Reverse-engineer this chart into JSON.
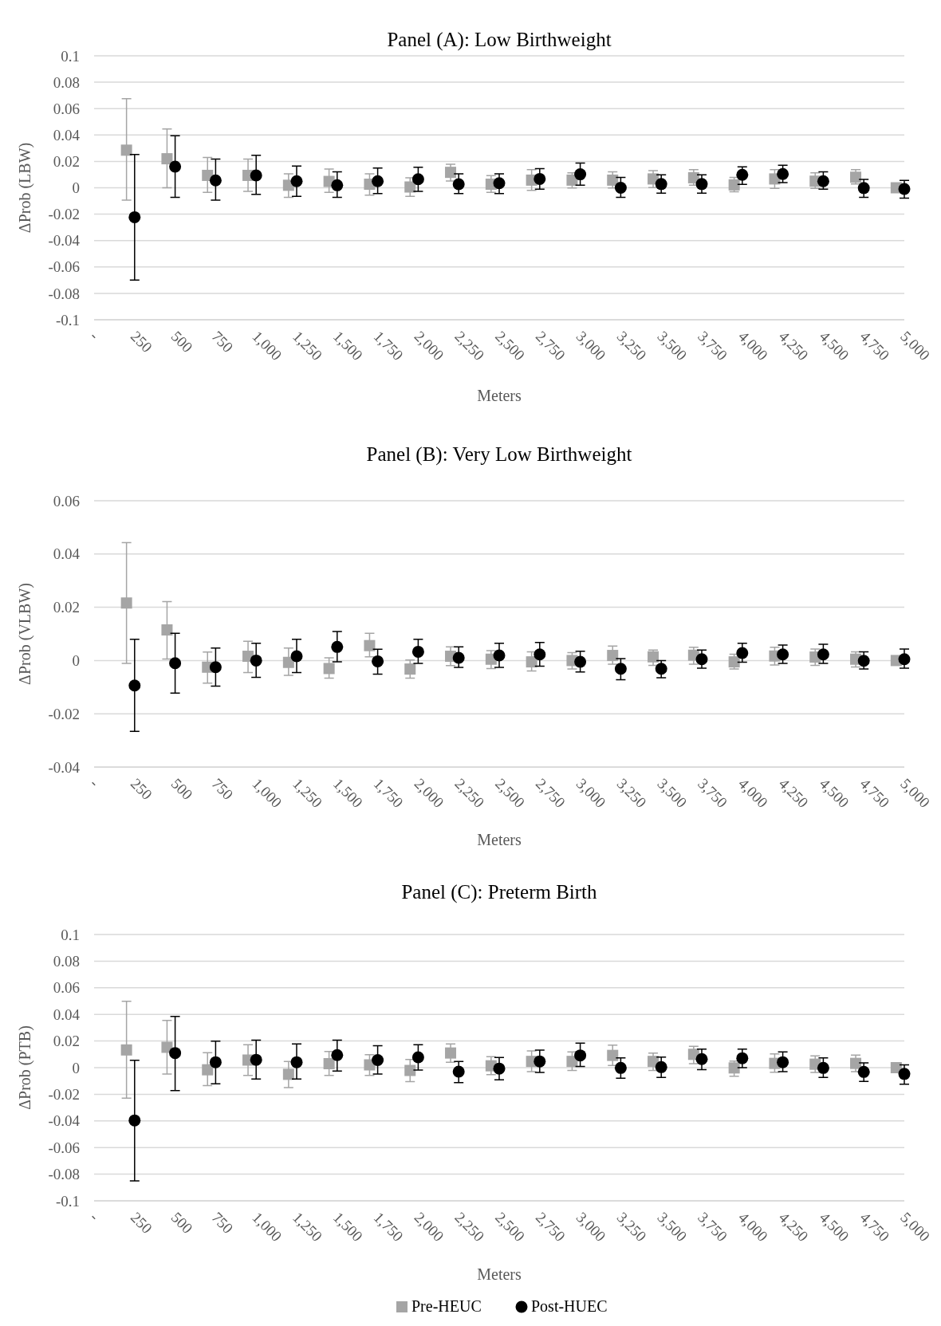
{
  "chart_data": [
    {
      "type": "scatter",
      "title": "Panel (A): Low Birthweight",
      "xlabel": "Meters",
      "ylabel": "ΔProb (LBW)",
      "xlim": [
        0,
        5000
      ],
      "ylim": [
        -0.1,
        0.1
      ],
      "xticks": [
        {
          "value": 0,
          "label": "-"
        },
        250,
        500,
        750,
        {
          "value": 1000,
          "label": "1,000"
        },
        {
          "value": 1250,
          "label": "1,250"
        },
        {
          "value": 1500,
          "label": "1,500"
        },
        {
          "value": 1750,
          "label": "1,750"
        },
        {
          "value": 2000,
          "label": "2,000"
        },
        {
          "value": 2250,
          "label": "2,250"
        },
        {
          "value": 2500,
          "label": "2,500"
        },
        {
          "value": 2750,
          "label": "2,750"
        },
        {
          "value": 3000,
          "label": "3,000"
        },
        {
          "value": 3250,
          "label": "3,250"
        },
        {
          "value": 3500,
          "label": "3,500"
        },
        {
          "value": 3750,
          "label": "3,750"
        },
        {
          "value": 4000,
          "label": "4,000"
        },
        {
          "value": 4250,
          "label": "4,250"
        },
        {
          "value": 4500,
          "label": "4,500"
        },
        {
          "value": 4750,
          "label": "4,750"
        },
        {
          "value": 5000,
          "label": "5,000"
        }
      ],
      "yticks": [
        -0.1,
        -0.08,
        -0.06,
        -0.04,
        -0.02,
        0,
        0.02,
        0.04,
        0.06,
        0.08,
        0.1
      ],
      "grid": "y",
      "legend": false,
      "series": [
        {
          "color": "#a5a5a5",
          "marker": "square",
          "x": [
            200,
            450,
            700,
            950,
            1200,
            1450,
            1700,
            1950,
            2200,
            2450,
            2700,
            2950,
            3200,
            3450,
            3700,
            3950,
            4200,
            4450,
            4700,
            4950
          ],
          "values": [
            0.0285,
            0.022,
            0.0094,
            0.0094,
            0.0019,
            0.0048,
            0.0027,
            0.0006,
            0.0117,
            0.0027,
            0.0058,
            0.0058,
            0.0058,
            0.0067,
            0.0076,
            0.0022,
            0.0067,
            0.005,
            0.008,
            0
          ],
          "errors": [
            [
              -0.0094,
              0.0675
            ],
            [
              0,
              0.0446
            ],
            [
              -0.0035,
              0.023
            ],
            [
              -0.0027,
              0.0217
            ],
            [
              -0.0073,
              0.0106
            ],
            [
              -0.0035,
              0.0142
            ],
            [
              -0.0056,
              0.0106
            ],
            [
              -0.0065,
              0.0075
            ],
            [
              0.0052,
              0.0179
            ],
            [
              -0.0035,
              0.0092
            ],
            [
              -0.002,
              0.0137
            ],
            [
              -0.0002,
              0.0113
            ],
            [
              -0.0002,
              0.0121
            ],
            [
              0.0002,
              0.013
            ],
            [
              0.002,
              0.0137
            ],
            [
              -0.003,
              0.0078
            ],
            [
              -0.0004,
              0.0137
            ],
            [
              -0.0004,
              0.0113
            ],
            [
              0.0028,
              0.0137
            ],
            null
          ]
        },
        {
          "color": "#000000",
          "marker": "circle",
          "x": [
            250,
            500,
            750,
            1000,
            1250,
            1500,
            1750,
            2000,
            2250,
            2500,
            2750,
            3000,
            3250,
            3500,
            3750,
            4000,
            4250,
            4500,
            4750,
            5000
          ],
          "values": [
            -0.0223,
            0.016,
            0.0056,
            0.0094,
            0.005,
            0.0019,
            0.005,
            0.0065,
            0.0027,
            0.0035,
            0.0067,
            0.0102,
            0,
            0.0028,
            0.0028,
            0.0098,
            0.0104,
            0.005,
            -0.0002,
            -0.0009
          ],
          "errors": [
            [
              -0.07,
              0.0252
            ],
            [
              -0.0073,
              0.0394
            ],
            [
              -0.0094,
              0.0217
            ],
            [
              -0.005,
              0.0246
            ],
            [
              -0.0065,
              0.0165
            ],
            [
              -0.0073,
              0.0121
            ],
            [
              -0.0044,
              0.015
            ],
            [
              -0.0027,
              0.0156
            ],
            [
              -0.0044,
              0.0106
            ],
            [
              -0.0044,
              0.0106
            ],
            [
              -0.0011,
              0.0145
            ],
            [
              0.002,
              0.0188
            ],
            [
              -0.0072,
              0.0078
            ],
            [
              -0.0041,
              0.0098
            ],
            [
              -0.0041,
              0.0098
            ],
            [
              0.0026,
              0.0158
            ],
            [
              0.0039,
              0.0171
            ],
            [
              -0.0011,
              0.0121
            ],
            [
              -0.0072,
              0.0063
            ],
            [
              -0.0078,
              0.0056
            ]
          ]
        }
      ]
    },
    {
      "type": "scatter",
      "title": "Panel (B): Very Low Birthweight",
      "xlabel": "Meters",
      "ylabel": "ΔProb (VLBW)",
      "xlim": [
        0,
        5000
      ],
      "ylim": [
        -0.04,
        0.06
      ],
      "xticks": [
        {
          "value": 0,
          "label": "-"
        },
        250,
        500,
        750,
        {
          "value": 1000,
          "label": "1,000"
        },
        {
          "value": 1250,
          "label": "1,250"
        },
        {
          "value": 1500,
          "label": "1,500"
        },
        {
          "value": 1750,
          "label": "1,750"
        },
        {
          "value": 2000,
          "label": "2,000"
        },
        {
          "value": 2250,
          "label": "2,250"
        },
        {
          "value": 2500,
          "label": "2,500"
        },
        {
          "value": 2750,
          "label": "2,750"
        },
        {
          "value": 3000,
          "label": "3,000"
        },
        {
          "value": 3250,
          "label": "3,250"
        },
        {
          "value": 3500,
          "label": "3,500"
        },
        {
          "value": 3750,
          "label": "3,750"
        },
        {
          "value": 4000,
          "label": "4,000"
        },
        {
          "value": 4250,
          "label": "4,250"
        },
        {
          "value": 4500,
          "label": "4,500"
        },
        {
          "value": 4750,
          "label": "4,750"
        },
        {
          "value": 5000,
          "label": "5,000"
        }
      ],
      "yticks": [
        -0.04,
        -0.02,
        0,
        0.02,
        0.04,
        0.06
      ],
      "grid": "y",
      "legend": false,
      "series": [
        {
          "color": "#a5a5a5",
          "marker": "square",
          "x": [
            200,
            450,
            700,
            950,
            1200,
            1450,
            1700,
            1950,
            2200,
            2450,
            2700,
            2950,
            3200,
            3450,
            3700,
            3950,
            4200,
            4450,
            4700,
            4950
          ],
          "values": [
            0.0216,
            0.0115,
            -0.0025,
            0.0016,
            -0.0007,
            -0.003,
            0.0056,
            -0.0032,
            0.0016,
            0.0005,
            -0.0005,
            0,
            0.0019,
            0.0014,
            0.002,
            -0.0005,
            0.0017,
            0.0013,
            0.0005,
            0
          ],
          "errors": [
            [
              -0.0011,
              0.0443
            ],
            [
              0.0006,
              0.0221
            ],
            [
              -0.0085,
              0.0032
            ],
            [
              -0.0045,
              0.0072
            ],
            [
              -0.0056,
              0.0047
            ],
            [
              -0.0066,
              0.001
            ],
            [
              0.0014,
              0.0102
            ],
            [
              -0.0066,
              0.0002
            ],
            [
              -0.0019,
              0.0051
            ],
            [
              -0.003,
              0.0037
            ],
            [
              -0.0039,
              0.0033
            ],
            [
              -0.0032,
              0.003
            ],
            [
              -0.0014,
              0.0054
            ],
            [
              -0.0018,
              0.0039
            ],
            [
              -0.0014,
              0.005
            ],
            [
              -0.0032,
              0.0024
            ],
            [
              -0.0017,
              0.005
            ],
            [
              -0.0018,
              0.0043
            ],
            [
              -0.0024,
              0.0033
            ],
            null
          ]
        },
        {
          "color": "#000000",
          "marker": "circle",
          "x": [
            250,
            500,
            750,
            1000,
            1250,
            1500,
            1750,
            2000,
            2250,
            2500,
            2750,
            3000,
            3250,
            3500,
            3750,
            4000,
            4250,
            4500,
            4750,
            5000
          ],
          "values": [
            -0.0094,
            -0.001,
            -0.0025,
            0,
            0.0016,
            0.0051,
            -0.0003,
            0.0033,
            0.001,
            0.0019,
            0.0023,
            -0.0005,
            -0.0031,
            -0.0031,
            0.0005,
            0.0028,
            0.0023,
            0.0023,
            -0.0001,
            0.0005
          ],
          "errors": [
            [
              -0.0266,
              0.008
            ],
            [
              -0.0122,
              0.0102
            ],
            [
              -0.0096,
              0.0047
            ],
            [
              -0.0063,
              0.0065
            ],
            [
              -0.0045,
              0.008
            ],
            [
              -0.0005,
              0.0109
            ],
            [
              -0.0051,
              0.0042
            ],
            [
              -0.0011,
              0.008
            ],
            [
              -0.0026,
              0.0051
            ],
            [
              -0.0026,
              0.0065
            ],
            [
              -0.0021,
              0.0068
            ],
            [
              -0.0043,
              0.0035
            ],
            [
              -0.0072,
              0.0007
            ],
            [
              -0.0065,
              0
            ],
            [
              -0.0029,
              0.0039
            ],
            [
              -0.0006,
              0.0065
            ],
            [
              -0.0011,
              0.0058
            ],
            [
              -0.0011,
              0.0061
            ],
            [
              -0.0032,
              0.0033
            ],
            [
              -0.0029,
              0.0043
            ]
          ]
        }
      ]
    },
    {
      "type": "scatter",
      "title": "Panel (C): Preterm Birth",
      "xlabel": "Meters",
      "ylabel": "ΔProb (PTB)",
      "xlim": [
        0,
        5000
      ],
      "ylim": [
        -0.1,
        0.1
      ],
      "xticks": [
        {
          "value": 0,
          "label": "-"
        },
        250,
        500,
        750,
        {
          "value": 1000,
          "label": "1,000"
        },
        {
          "value": 1250,
          "label": "1,250"
        },
        {
          "value": 1500,
          "label": "1,500"
        },
        {
          "value": 1750,
          "label": "1,750"
        },
        {
          "value": 2000,
          "label": "2,000"
        },
        {
          "value": 2250,
          "label": "2,250"
        },
        {
          "value": 2500,
          "label": "2,500"
        },
        {
          "value": 2750,
          "label": "2,750"
        },
        {
          "value": 3000,
          "label": "3,000"
        },
        {
          "value": 3250,
          "label": "3,250"
        },
        {
          "value": 3500,
          "label": "3,500"
        },
        {
          "value": 3750,
          "label": "3,750"
        },
        {
          "value": 4000,
          "label": "4,000"
        },
        {
          "value": 4250,
          "label": "4,250"
        },
        {
          "value": 4500,
          "label": "4,500"
        },
        {
          "value": 4750,
          "label": "4,750"
        },
        {
          "value": 5000,
          "label": "5,000"
        }
      ],
      "yticks": [
        -0.1,
        -0.08,
        -0.06,
        -0.04,
        -0.02,
        0,
        0.02,
        0.04,
        0.06,
        0.08,
        0.1
      ],
      "grid": "y",
      "legend": "bottom",
      "series": [
        {
          "name": "Pre-HEUC",
          "color": "#a5a5a5",
          "marker": "square",
          "x": [
            200,
            450,
            700,
            950,
            1200,
            1450,
            1700,
            1950,
            2200,
            2450,
            2700,
            2950,
            3200,
            3450,
            3700,
            3950,
            4200,
            4450,
            4700,
            4950
          ],
          "values": [
            0.0133,
            0.0153,
            -0.0016,
            0.0057,
            -0.005,
            0.003,
            0.0021,
            -0.0021,
            0.011,
            0.0014,
            0.0047,
            0.0047,
            0.0092,
            0.0047,
            0.01,
            -0.0002,
            0.0032,
            0.0026,
            0.0032,
            0
          ],
          "errors": [
            [
              -0.0229,
              0.0499
            ],
            [
              -0.0048,
              0.0355
            ],
            [
              -0.0135,
              0.0112
            ],
            [
              -0.0059,
              0.0172
            ],
            [
              -0.0149,
              0.0046
            ],
            [
              -0.0059,
              0.0121
            ],
            [
              -0.0059,
              0.0098
            ],
            [
              -0.0105,
              0.0062
            ],
            [
              0.0041,
              0.0178
            ],
            [
              -0.0053,
              0.0082
            ],
            [
              -0.003,
              0.0126
            ],
            [
              -0.0021,
              0.0118
            ],
            [
              0.0017,
              0.0169
            ],
            [
              -0.0021,
              0.0109
            ],
            [
              0.003,
              0.016
            ],
            [
              -0.0064,
              0.0049
            ],
            [
              -0.0034,
              0.0103
            ],
            [
              -0.0036,
              0.0088
            ],
            [
              -0.003,
              0.0094
            ],
            null
          ]
        },
        {
          "name": "Post-HUEC",
          "color": "#000000",
          "marker": "circle",
          "x": [
            250,
            500,
            750,
            1000,
            1250,
            1500,
            1750,
            2000,
            2250,
            2500,
            2750,
            3000,
            3250,
            3500,
            3750,
            4000,
            4250,
            4500,
            4750,
            5000
          ],
          "values": [
            -0.0396,
            0.011,
            0.0041,
            0.0059,
            0.0041,
            0.0094,
            0.0057,
            0.0078,
            -0.003,
            -0.0007,
            0.0047,
            0.0092,
            -0.0002,
            0.0004,
            0.0064,
            0.0071,
            0.0041,
            -0.0002,
            -0.0032,
            -0.0047
          ],
          "errors": [
            [
              -0.0851,
              0.0055
            ],
            [
              -0.0172,
              0.0384
            ],
            [
              -0.0121,
              0.0199
            ],
            [
              -0.0085,
              0.0206
            ],
            [
              -0.0085,
              0.0178
            ],
            [
              -0.0025,
              0.0206
            ],
            [
              -0.0048,
              0.0165
            ],
            [
              -0.0018,
              0.0172
            ],
            [
              -0.0112,
              0.0046
            ],
            [
              -0.0092,
              0.0076
            ],
            [
              -0.0036,
              0.0132
            ],
            [
              0.0009,
              0.0184
            ],
            [
              -0.0079,
              0.0073
            ],
            [
              -0.0073,
              0.0079
            ],
            [
              -0.0015,
              0.0139
            ],
            [
              0,
              0.0139
            ],
            [
              -0.003,
              0.0118
            ],
            [
              -0.0073,
              0.0073
            ],
            [
              -0.0103,
              0.0036
            ],
            [
              -0.0124,
              0.0021
            ]
          ]
        }
      ]
    }
  ]
}
